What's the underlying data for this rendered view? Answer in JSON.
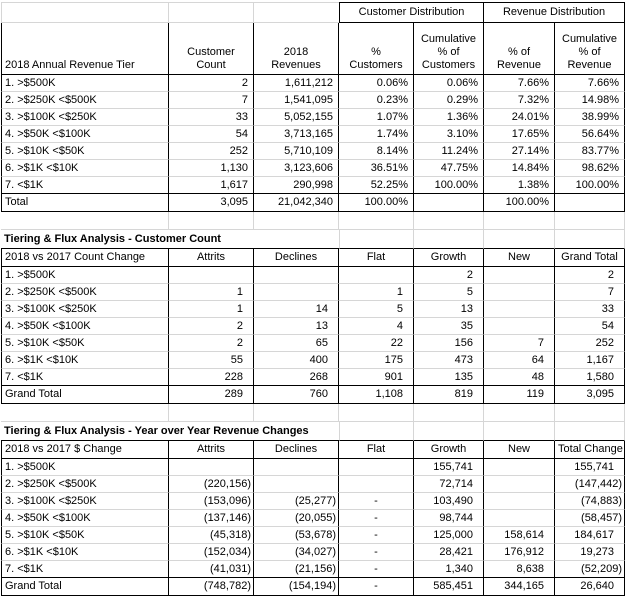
{
  "colors": {
    "table_border": "#000000",
    "gridline": "#d6d6d6",
    "text": "#000000",
    "background": "#ffffff"
  },
  "table1": {
    "group_headers": [
      "Customer Distribution",
      "Revenue Distribution"
    ],
    "columns": [
      "2018 Annual Revenue Tier",
      "Customer Count",
      "2018\nRevenues",
      "%\nCustomers",
      "Cumulative\n% of\nCustomers",
      "% of\nRevenue",
      "Cumulative\n% of\nRevenue"
    ],
    "rows": [
      [
        "1. >$500K",
        "2",
        "1,611,212",
        "0.06%",
        "0.06%",
        "7.66%",
        "7.66%"
      ],
      [
        "2. >$250K <$500K",
        "7",
        "1,541,095",
        "0.23%",
        "0.29%",
        "7.32%",
        "14.98%"
      ],
      [
        "3. >$100K <$250K",
        "33",
        "5,052,155",
        "1.07%",
        "1.36%",
        "24.01%",
        "38.99%"
      ],
      [
        "4. >$50K <$100K",
        "54",
        "3,713,165",
        "1.74%",
        "3.10%",
        "17.65%",
        "56.64%"
      ],
      [
        "5. >$10K <$50K",
        "252",
        "5,710,109",
        "8.14%",
        "11.24%",
        "27.14%",
        "83.77%"
      ],
      [
        "6. >$1K <$10K",
        "1,130",
        "3,123,606",
        "36.51%",
        "47.75%",
        "14.84%",
        "98.62%"
      ],
      [
        "7. <$1K",
        "1,617",
        "290,998",
        "52.25%",
        "100.00%",
        "1.38%",
        "100.00%"
      ]
    ],
    "total_rows": [
      [
        "Total",
        "3,095",
        "21,042,340",
        "100.00%",
        "",
        "100.00%",
        ""
      ]
    ]
  },
  "table2": {
    "title": "Tiering & Flux Analysis - Customer Count",
    "columns": [
      "2018 vs 2017 Count Change",
      "Attrits",
      "Declines",
      "Flat",
      "Growth",
      "New",
      "Grand Total"
    ],
    "rows": [
      [
        "1. >$500K",
        "",
        "",
        "",
        "2",
        "",
        "2"
      ],
      [
        "2. >$250K <$500K",
        "1",
        "",
        "1",
        "5",
        "",
        "7"
      ],
      [
        "3. >$100K <$250K",
        "1",
        "14",
        "5",
        "13",
        "",
        "33"
      ],
      [
        "4. >$50K <$100K",
        "2",
        "13",
        "4",
        "35",
        "",
        "54"
      ],
      [
        "5. >$10K <$50K",
        "2",
        "65",
        "22",
        "156",
        "7",
        "252"
      ],
      [
        "6. >$1K <$10K",
        "55",
        "400",
        "175",
        "473",
        "64",
        "1,167"
      ],
      [
        "7. <$1K",
        "228",
        "268",
        "901",
        "135",
        "48",
        "1,580"
      ]
    ],
    "total_rows": [
      [
        "Grand Total",
        "289",
        "760",
        "1,108",
        "819",
        "119",
        "3,095"
      ]
    ]
  },
  "table3": {
    "title": "Tiering & Flux Analysis - Year over Year Revenue Changes",
    "columns": [
      "2018 vs 2017 $ Change",
      "Attrits",
      "Declines",
      "Flat",
      "Growth",
      "New",
      "Total Change"
    ],
    "rows": [
      [
        "1. >$500K",
        "",
        "",
        "",
        "155,741",
        "",
        "155,741"
      ],
      [
        "2. >$250K <$500K",
        "(220,156)",
        "",
        "",
        "72,714",
        "",
        "(147,442)"
      ],
      [
        "3. >$100K <$250K",
        "(153,096)",
        "(25,277)",
        "-",
        "103,490",
        "",
        "(74,883)"
      ],
      [
        "4. >$50K <$100K",
        "(137,146)",
        "(20,055)",
        "-",
        "98,744",
        "",
        "(58,457)"
      ],
      [
        "5. >$10K <$50K",
        "(45,318)",
        "(53,678)",
        "-",
        "125,000",
        "158,614",
        "184,617"
      ],
      [
        "6. >$1K <$10K",
        "(152,034)",
        "(34,027)",
        "-",
        "28,421",
        "176,912",
        "19,273"
      ],
      [
        "7. <$1K",
        "(41,031)",
        "(21,156)",
        "-",
        "1,340",
        "8,638",
        "(52,209)"
      ]
    ],
    "total_rows": [
      [
        "Grand Total",
        "(748,782)",
        "(154,194)",
        "-",
        "585,451",
        "344,165",
        "26,640"
      ]
    ]
  }
}
